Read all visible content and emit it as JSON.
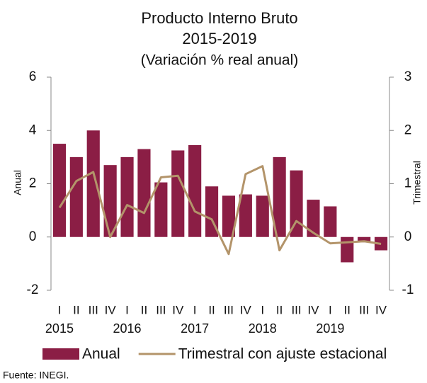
{
  "chart_data": {
    "type": "bar-line",
    "title": "Producto Interno Bruto",
    "subtitle": "2015-2019",
    "subtitle2": "(Variación % real anual)",
    "ylabel": "Anual",
    "y2label": "Trimestral",
    "source": "Fuente: INEGI.",
    "categories": [
      "I",
      "II",
      "III",
      "IV",
      "I",
      "II",
      "III",
      "IV",
      "I",
      "II",
      "III",
      "IV",
      "I",
      "II",
      "III",
      "IV",
      "I",
      "II",
      "III",
      "IV"
    ],
    "years": [
      "2015",
      "2016",
      "2017",
      "2018",
      "2019"
    ],
    "series": [
      {
        "name": "Anual",
        "type": "bar",
        "color": "#8b1e45",
        "axis": "y",
        "values": [
          3.5,
          3.0,
          4.0,
          2.7,
          3.0,
          3.3,
          2.05,
          3.25,
          3.45,
          1.9,
          1.55,
          1.6,
          1.55,
          3.0,
          2.5,
          1.4,
          1.15,
          -0.95,
          -0.2,
          -0.5
        ]
      },
      {
        "name": "Trimestral con ajuste estacional",
        "type": "line",
        "color": "#b3946a",
        "axis": "y2",
        "values": [
          0.55,
          1.05,
          1.22,
          0.0,
          0.6,
          0.45,
          1.12,
          1.15,
          0.48,
          0.33,
          -0.32,
          1.18,
          1.33,
          -0.25,
          0.3,
          0.08,
          -0.12,
          -0.1,
          -0.08,
          -0.13
        ]
      }
    ],
    "ylim": [
      -2,
      6
    ],
    "yticks": [
      -2,
      0,
      2,
      4,
      6
    ],
    "y2lim": [
      -1,
      3
    ],
    "y2ticks": [
      -1,
      0,
      1,
      2,
      3
    ],
    "grid": false,
    "legend": "bottom"
  }
}
